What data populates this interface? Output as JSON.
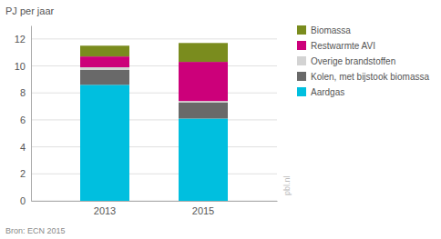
{
  "chart_data": {
    "type": "bar",
    "stacked": true,
    "categories": [
      "2013",
      "2015"
    ],
    "series": [
      {
        "name": "Aardgas",
        "color": "#00BFDF",
        "values": [
          8.6,
          6.1
        ]
      },
      {
        "name": "Kolen, met bijstook biomassa",
        "color": "#696969",
        "values": [
          1.1,
          1.2
        ]
      },
      {
        "name": "Overige brandstoffen",
        "color": "#D3D3D3",
        "values": [
          0.2,
          0.1
        ]
      },
      {
        "name": "Restwarmte AVI",
        "color": "#CC007A",
        "values": [
          0.8,
          2.9
        ]
      },
      {
        "name": "Biomassa",
        "color": "#7A8C1E",
        "values": [
          0.8,
          1.4
        ]
      }
    ],
    "ylabel": "PJ per jaar",
    "ylim": [
      0,
      13
    ],
    "yticks": [
      0,
      2,
      4,
      6,
      8,
      10,
      12
    ],
    "grid": true,
    "legend": "right",
    "annotations": [
      "Bron: ECN 2015",
      "pbl.nl"
    ]
  }
}
